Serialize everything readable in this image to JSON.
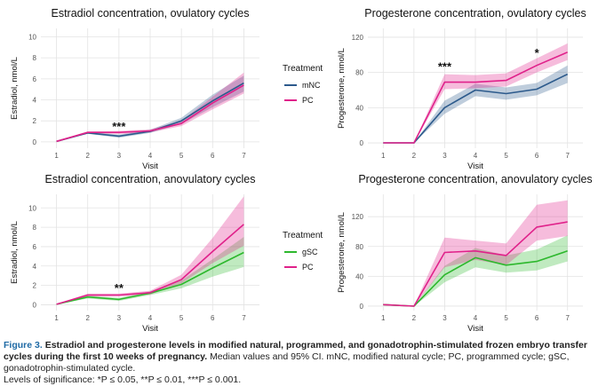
{
  "colors": {
    "mNC": "#2c5a8c",
    "PC": "#e0218a",
    "gSC": "#2db82d"
  },
  "chart_data": [
    {
      "type": "line",
      "title": "Estradiol concentration, ovulatory cycles",
      "xlabel": "Visit",
      "ylabel": "Estradiol, nmol/L",
      "x": [
        1,
        2,
        3,
        4,
        5,
        6,
        7
      ],
      "xlim": [
        0.5,
        7.5
      ],
      "ylim": [
        -0.6,
        10.8
      ],
      "yticks": [
        0,
        2,
        4,
        6,
        8,
        10
      ],
      "legend": {
        "title": "Treatment",
        "placement": "right"
      },
      "series": [
        {
          "name": "mNC",
          "color_key": "mNC",
          "values": [
            0.05,
            0.85,
            0.55,
            1.0,
            2.0,
            3.9,
            5.6
          ],
          "lower": [
            0.03,
            0.78,
            0.4,
            0.85,
            1.7,
            3.3,
            4.8
          ],
          "upper": [
            0.08,
            0.95,
            0.7,
            1.15,
            2.3,
            4.5,
            6.3
          ]
        },
        {
          "name": "PC",
          "color_key": "PC",
          "values": [
            0.05,
            0.9,
            0.9,
            1.05,
            1.75,
            3.7,
            5.4
          ],
          "lower": [
            0.03,
            0.8,
            0.75,
            0.9,
            1.5,
            3.1,
            4.6
          ],
          "upper": [
            0.08,
            1.0,
            1.05,
            1.2,
            2.0,
            4.3,
            6.6
          ]
        }
      ],
      "annotations": [
        {
          "x": 3,
          "y": 1.0,
          "text": "***"
        }
      ]
    },
    {
      "type": "line",
      "title": "Progesterone concentration, ovulatory cycles",
      "xlabel": "Visit",
      "ylabel": "Progesterone, nmol/L",
      "x": [
        1,
        2,
        3,
        4,
        5,
        6,
        7
      ],
      "xlim": [
        0.5,
        7.5
      ],
      "ylim": [
        -6,
        130
      ],
      "yticks": [
        0,
        40,
        80,
        120
      ],
      "series": [
        {
          "name": "mNC",
          "color_key": "mNC",
          "values": [
            0,
            0,
            40,
            60,
            56,
            61,
            78
          ],
          "lower": [
            0,
            0,
            33,
            53,
            49,
            54,
            68
          ],
          "upper": [
            0,
            0,
            48,
            67,
            63,
            68,
            88
          ]
        },
        {
          "name": "PC",
          "color_key": "PC",
          "values": [
            0,
            0,
            69,
            69,
            71,
            88,
            103
          ],
          "lower": [
            0,
            0,
            61,
            62,
            64,
            80,
            94
          ],
          "upper": [
            0,
            0,
            78,
            77,
            79,
            96,
            113
          ]
        }
      ],
      "annotations": [
        {
          "x": 3,
          "y": 81,
          "text": "***"
        },
        {
          "x": 6,
          "y": 97,
          "text": "*"
        }
      ]
    },
    {
      "type": "line",
      "title": "Estradiol concentration, anovulatory cycles",
      "xlabel": "Visit",
      "ylabel": "Estradiol, nmol/L",
      "x": [
        1,
        2,
        3,
        4,
        5,
        6,
        7
      ],
      "xlim": [
        0.5,
        7.5
      ],
      "ylim": [
        -0.6,
        11.4
      ],
      "yticks": [
        0,
        2,
        4,
        6,
        8,
        10
      ],
      "legend": {
        "title": "Treatment",
        "placement": "right"
      },
      "series": [
        {
          "name": "gSC",
          "color_key": "gSC",
          "values": [
            0.05,
            0.8,
            0.55,
            1.2,
            2.1,
            3.8,
            5.4
          ],
          "lower": [
            0.03,
            0.65,
            0.4,
            1.0,
            1.7,
            2.9,
            3.9
          ],
          "upper": [
            0.08,
            0.95,
            0.7,
            1.4,
            2.5,
            4.7,
            7.0
          ]
        },
        {
          "name": "PC",
          "color_key": "PC",
          "values": [
            0.05,
            1.0,
            1.0,
            1.25,
            2.6,
            5.5,
            8.3
          ],
          "lower": [
            0.03,
            0.85,
            0.85,
            1.05,
            2.2,
            4.3,
            6.1
          ],
          "upper": [
            0.08,
            1.15,
            1.15,
            1.45,
            3.1,
            6.9,
            11.2
          ]
        }
      ],
      "annotations": [
        {
          "x": 3,
          "y": 1.25,
          "text": "**"
        }
      ]
    },
    {
      "type": "line",
      "title": "Progesterone concentration, anovulatory cycles",
      "xlabel": "Visit",
      "ylabel": "Progesterone, nmol/L",
      "x": [
        1,
        2,
        3,
        4,
        5,
        6,
        7
      ],
      "xlim": [
        0.5,
        7.5
      ],
      "ylim": [
        -6,
        150
      ],
      "yticks": [
        0,
        40,
        80,
        120
      ],
      "series": [
        {
          "name": "gSC",
          "color_key": "gSC",
          "values": [
            2,
            0,
            42,
            65,
            55,
            60,
            74
          ],
          "lower": [
            1,
            0,
            32,
            52,
            45,
            48,
            60
          ],
          "upper": [
            3,
            0,
            54,
            78,
            68,
            76,
            95
          ]
        },
        {
          "name": "PC",
          "color_key": "PC",
          "values": [
            2,
            0,
            72,
            74,
            68,
            106,
            113
          ],
          "lower": [
            1,
            0,
            52,
            62,
            55,
            88,
            94
          ],
          "upper": [
            3,
            0,
            92,
            88,
            84,
            136,
            142
          ]
        }
      ]
    }
  ],
  "caption": {
    "label": "Figure 3.",
    "title": "Estradiol and progesterone levels in modified natural, programmed, and gonadotrophin-stimulated frozen embryo transfer cycles during the first 10 weeks of pregnancy.",
    "body": "Median values and 95% CI. mNC, modified natural cycle; PC, programmed cycle; gSC, gonadotrophin-stimulated cycle.",
    "levels": "Levels of significance: *P ≤ 0.05, **P ≤ 0.01, ***P ≤ 0.001."
  }
}
